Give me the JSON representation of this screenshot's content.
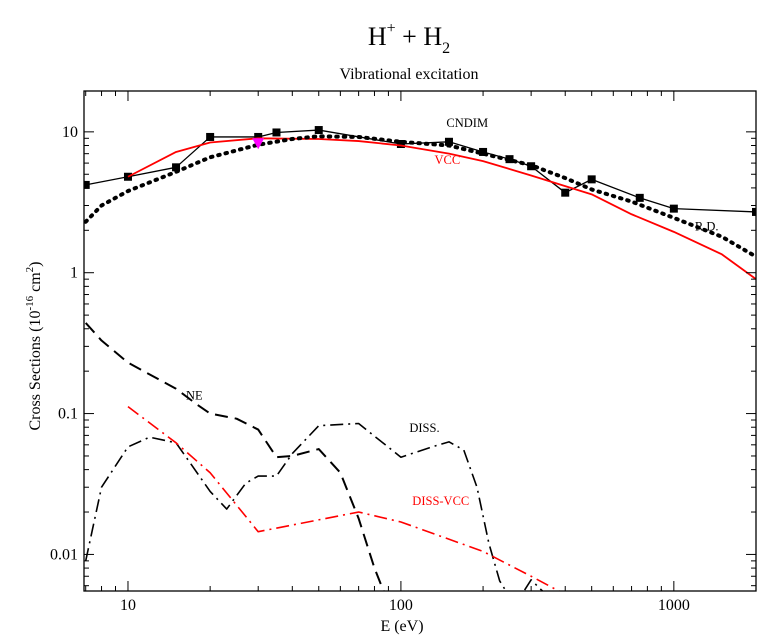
{
  "chart_data": {
    "type": "line",
    "title": {
      "main": "H",
      "main_sup": "+",
      "main_mid": " + H",
      "main_sub": "2"
    },
    "subtitle": "Vibrational excitation",
    "xlabel": "E (eV)",
    "ylabel": {
      "pre": "Cross Sections  (10",
      "sup1": "-16",
      "mid": " cm",
      "sup2": "2",
      "post": ")"
    },
    "xscale": "log",
    "yscale": "log",
    "xlim": [
      6.9,
      2000
    ],
    "ylim": [
      0.0055,
      19.5
    ],
    "xticks": [
      {
        "value": 10,
        "label": "10"
      },
      {
        "value": 100,
        "label": "100"
      },
      {
        "value": 1000,
        "label": "1000"
      }
    ],
    "yticks": [
      {
        "value": 0.01,
        "label": "0.01"
      },
      {
        "value": 0.1,
        "label": "0.1"
      },
      {
        "value": 1,
        "label": "1"
      },
      {
        "value": 10,
        "label": "10"
      }
    ],
    "grid": false,
    "series": [
      {
        "name": "CNDIM",
        "color": "#000000",
        "style": "solid-markers",
        "label": {
          "text": "CNDIM",
          "x": 175,
          "y": 10.8
        },
        "x": [
          7,
          10,
          15,
          20,
          30,
          35,
          50,
          100,
          150,
          200,
          250,
          300,
          400,
          500,
          750,
          1000,
          2000
        ],
        "y": [
          4.2,
          4.8,
          5.6,
          9.2,
          9.2,
          9.9,
          10.3,
          8.2,
          8.5,
          7.2,
          6.4,
          5.7,
          3.7,
          4.6,
          3.4,
          2.85,
          2.7
        ]
      },
      {
        "name": "VCC",
        "color": "#ff0000",
        "style": "solid",
        "label": {
          "text": "VCC",
          "x": 148,
          "y": 5.9
        },
        "x": [
          10,
          15,
          20,
          30,
          50,
          70,
          100,
          150,
          200,
          300,
          500,
          700,
          1000,
          1500,
          2000
        ],
        "y": [
          4.8,
          7.2,
          8.4,
          9.0,
          8.9,
          8.6,
          8.0,
          7.0,
          6.2,
          4.9,
          3.6,
          2.6,
          1.95,
          1.35,
          0.9
        ]
      },
      {
        "name": "R.D.",
        "color": "#000000",
        "style": "dotted",
        "label": {
          "text": "R.D.",
          "x": 1320,
          "y": 2.0
        },
        "x": [
          7,
          8,
          10,
          15,
          20,
          30,
          40,
          50,
          70,
          100,
          150,
          200,
          300,
          400,
          500,
          700,
          1000,
          1500,
          2000
        ],
        "y": [
          2.3,
          3.0,
          3.8,
          5.2,
          6.6,
          8.1,
          8.9,
          9.3,
          9.2,
          8.5,
          8.0,
          7.0,
          5.8,
          4.7,
          3.9,
          3.2,
          2.45,
          1.8,
          1.3
        ]
      },
      {
        "name": "NE",
        "color": "#000000",
        "style": "dashed",
        "label": {
          "text": "NE",
          "x": 17.5,
          "y": 0.126
        },
        "x": [
          7,
          8,
          10,
          15,
          18,
          20,
          25,
          30,
          35,
          40,
          50,
          60,
          70,
          80,
          90
        ],
        "y": [
          0.44,
          0.33,
          0.23,
          0.15,
          0.115,
          0.1,
          0.092,
          0.077,
          0.049,
          0.05,
          0.056,
          0.038,
          0.018,
          0.008,
          0.0045
        ]
      },
      {
        "name": "DISS.",
        "color": "#000000",
        "style": "dashdot",
        "label": {
          "text": "DISS.",
          "x": 122,
          "y": 0.074
        },
        "x": [
          7,
          8,
          10,
          12,
          15,
          20,
          23,
          27,
          30,
          35,
          40,
          50,
          70,
          100,
          130,
          150,
          170,
          190,
          210,
          230,
          250,
          270,
          300,
          330,
          360
        ],
        "y": [
          0.009,
          0.03,
          0.058,
          0.068,
          0.062,
          0.028,
          0.021,
          0.032,
          0.036,
          0.036,
          0.052,
          0.082,
          0.085,
          0.049,
          0.058,
          0.063,
          0.055,
          0.03,
          0.012,
          0.0065,
          0.005,
          0.0048,
          0.0066,
          0.0055,
          0.0042
        ]
      },
      {
        "name": "DISS-VCC",
        "color": "#ff0000",
        "style": "dashdot",
        "label": {
          "text": "DISS-VCC",
          "x": 140,
          "y": 0.0225
        },
        "x": [
          10,
          15,
          20,
          30,
          70,
          100,
          200,
          300,
          400
        ],
        "y": [
          0.112,
          0.062,
          0.038,
          0.0145,
          0.02,
          0.017,
          0.0105,
          0.007,
          0.0052
        ]
      },
      {
        "name": "",
        "color": "#ff00ff",
        "style": "marker-triangle",
        "x": [
          30
        ],
        "y": [
          8.3
        ]
      }
    ]
  }
}
